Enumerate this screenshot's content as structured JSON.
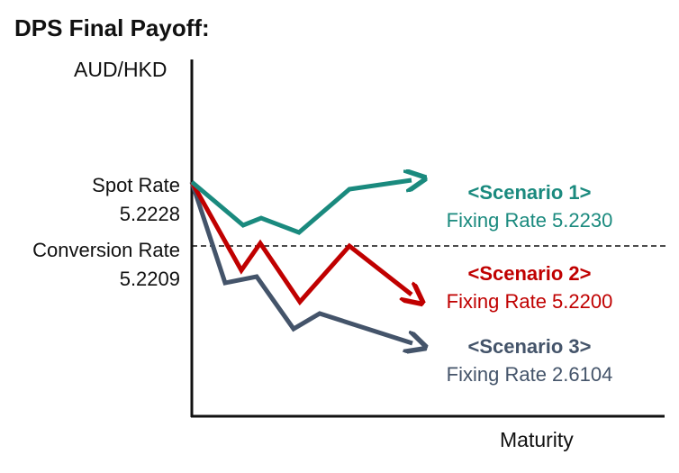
{
  "title": "DPS Final Payoff:",
  "axis": {
    "y_label": "AUD/HKD",
    "x_label": "Maturity"
  },
  "levels": {
    "spot": {
      "name": "Spot Rate",
      "value": "5.2228"
    },
    "conversion": {
      "name": "Conversion Rate",
      "value": "5.2209"
    }
  },
  "scenarios": [
    {
      "title": "<Scenario 1>",
      "fixing": "Fixing Rate 5.2230",
      "color": "#1a8a7e"
    },
    {
      "title": "<Scenario 2>",
      "fixing": "Fixing Rate 5.2200",
      "color": "#c00000"
    },
    {
      "title": "<Scenario 3>",
      "fixing": "Fixing Rate 2.6104",
      "color": "#44546a"
    }
  ]
}
